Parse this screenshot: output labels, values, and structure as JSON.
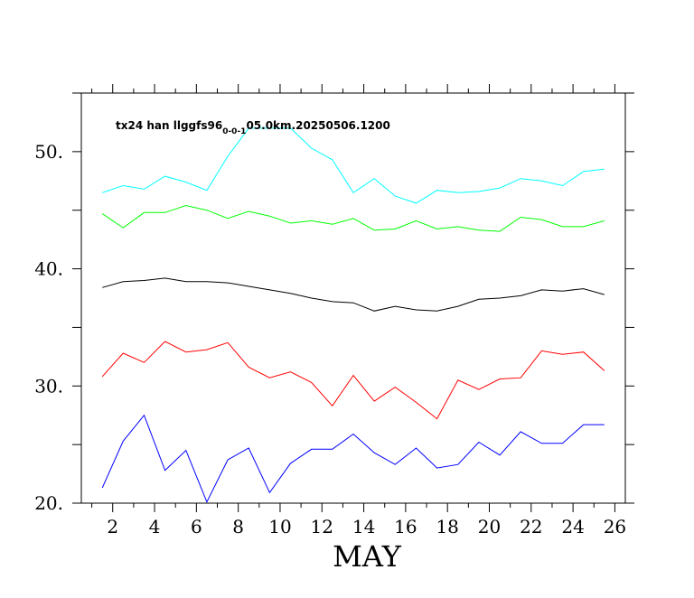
{
  "chart_data": {
    "type": "line",
    "title_main": "tx24 han llggfs96",
    "title_sub": "0-0-1",
    "title_tail": "05.0km.20250506.1200",
    "xlabel": "MAY",
    "ylabel": "",
    "xlim": [
      0.5,
      26.5
    ],
    "ylim": [
      20,
      55
    ],
    "x_ticks": [
      2,
      4,
      6,
      8,
      10,
      12,
      14,
      16,
      18,
      20,
      22,
      24,
      26
    ],
    "x_minor_ticks": [
      1,
      3,
      5,
      7,
      9,
      11,
      13,
      15,
      17,
      19,
      21,
      23,
      25
    ],
    "y_ticks": [
      20,
      30,
      40,
      50
    ],
    "y_tick_labels": [
      "20.",
      "30.",
      "40.",
      "50."
    ],
    "y_minor_ticks": [
      25,
      35,
      45,
      55
    ],
    "grid": false,
    "legend": "none",
    "x": [
      1.5,
      2.5,
      3.5,
      4.5,
      5.5,
      6.5,
      7.5,
      8.5,
      9.5,
      10.5,
      11.5,
      12.5,
      13.5,
      14.5,
      15.5,
      16.5,
      17.5,
      18.5,
      19.5,
      20.5,
      21.5,
      22.5,
      23.5,
      24.5,
      25.5
    ],
    "series": [
      {
        "color": "#00ffff",
        "values": [
          46.5,
          47.1,
          46.8,
          47.9,
          47.4,
          46.7,
          49.6,
          52.0,
          52.0,
          52.0,
          50.3,
          49.3,
          46.5,
          47.7,
          46.2,
          45.6,
          46.7,
          46.5,
          46.6,
          46.9,
          47.7,
          47.5,
          47.1,
          48.3,
          48.5
        ]
      },
      {
        "color": "#00ff00",
        "values": [
          44.7,
          43.5,
          44.8,
          44.8,
          45.4,
          45.0,
          44.3,
          44.9,
          44.5,
          43.9,
          44.1,
          43.8,
          44.3,
          43.3,
          43.4,
          44.1,
          43.4,
          43.6,
          43.3,
          43.2,
          44.4,
          44.2,
          43.6,
          43.6,
          44.1
        ]
      },
      {
        "color": "#000000",
        "values": [
          38.4,
          38.9,
          39.0,
          39.2,
          38.9,
          38.9,
          38.8,
          38.5,
          38.2,
          37.9,
          37.5,
          37.2,
          37.1,
          36.4,
          36.8,
          36.5,
          36.4,
          36.8,
          37.4,
          37.5,
          37.7,
          38.2,
          38.1,
          38.3,
          37.8
        ]
      },
      {
        "color": "#ff0000",
        "values": [
          30.8,
          32.8,
          32.0,
          33.8,
          32.9,
          33.1,
          33.7,
          31.6,
          30.7,
          31.2,
          30.3,
          28.3,
          30.9,
          28.7,
          29.9,
          28.6,
          27.2,
          30.5,
          29.7,
          30.6,
          30.7,
          33.0,
          32.7,
          32.9,
          31.3
        ]
      },
      {
        "color": "#0000ff",
        "values": [
          21.3,
          25.3,
          27.5,
          22.8,
          24.5,
          20.1,
          23.7,
          24.7,
          20.9,
          23.4,
          24.6,
          24.6,
          25.9,
          24.3,
          23.3,
          24.7,
          23.0,
          23.3,
          25.2,
          24.1,
          26.1,
          25.1,
          25.1,
          26.7,
          26.7
        ]
      }
    ]
  }
}
